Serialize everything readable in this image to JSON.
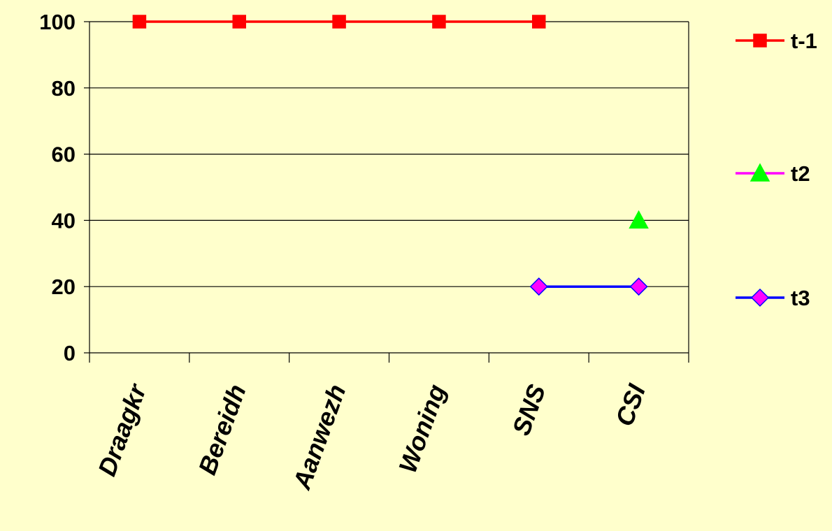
{
  "chart_data": {
    "type": "line",
    "categories": [
      "Draagkr",
      "Bereidh",
      "Aanwezh",
      "Woning",
      "SNS",
      "CSI"
    ],
    "y_ticks": [
      "0",
      "20",
      "40",
      "60",
      "80",
      "100"
    ],
    "ylim": [
      0,
      100
    ],
    "grid": true,
    "legend_position": "right",
    "series": [
      {
        "name": "t-1",
        "values": [
          100,
          100,
          100,
          100,
          100,
          null
        ],
        "line_color": "#ff0000",
        "marker": "square",
        "marker_color": "#ff0000",
        "marker_border": "#ff0000"
      },
      {
        "name": "t2",
        "values": [
          null,
          null,
          null,
          null,
          null,
          40
        ],
        "line_color": "#ff00ff",
        "marker": "triangle",
        "marker_color": "#00ff00",
        "marker_border": "#00ff00"
      },
      {
        "name": "t3",
        "values": [
          null,
          null,
          null,
          null,
          20,
          20
        ],
        "line_color": "#0000ff",
        "marker": "diamond",
        "marker_color": "#ff00ff",
        "marker_border": "#0000ff"
      }
    ]
  }
}
